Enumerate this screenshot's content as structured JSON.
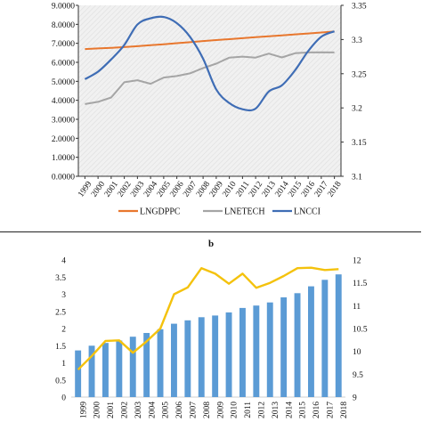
{
  "chart_data": [
    {
      "type": "line",
      "title": "",
      "x": [
        "1999",
        "2000",
        "2001",
        "2002",
        "2003",
        "2004",
        "2005",
        "2006",
        "2007",
        "2008",
        "2009",
        "2010",
        "2011",
        "2012",
        "2013",
        "2014",
        "2015",
        "2016",
        "2017",
        "2018"
      ],
      "ylim_left": [
        0,
        9
      ],
      "ylim_right": [
        3.1,
        3.35
      ],
      "left_ticks": [
        "0.0000",
        "1.0000",
        "2.0000",
        "3.0000",
        "4.0000",
        "5.0000",
        "6.0000",
        "7.0000",
        "8.0000",
        "9.0000"
      ],
      "right_ticks": [
        "3.1",
        "3.15",
        "3.2",
        "3.25",
        "3.3",
        "3.35"
      ],
      "series": [
        {
          "name": "LNGDPPC",
          "axis": "left",
          "color": "#e8772e",
          "values": [
            6.7,
            6.73,
            6.76,
            6.8,
            6.85,
            6.9,
            6.95,
            7.01,
            7.06,
            7.12,
            7.17,
            7.22,
            7.27,
            7.32,
            7.37,
            7.42,
            7.47,
            7.52,
            7.57,
            7.62
          ]
        },
        {
          "name": "LNETECH",
          "axis": "left",
          "color": "#a5a5a5",
          "values": [
            3.8,
            3.92,
            4.15,
            4.95,
            5.06,
            4.87,
            5.2,
            5.28,
            5.42,
            5.7,
            5.93,
            6.25,
            6.3,
            6.25,
            6.46,
            6.26,
            6.48,
            6.52,
            6.53,
            6.52
          ]
        },
        {
          "name": "LNCCI",
          "axis": "right",
          "color": "#3f6db5",
          "values": [
            3.242,
            3.253,
            3.271,
            3.292,
            3.322,
            3.331,
            3.333,
            3.324,
            3.304,
            3.272,
            3.227,
            3.207,
            3.198,
            3.199,
            3.224,
            3.233,
            3.255,
            3.283,
            3.304,
            3.312
          ]
        }
      ],
      "legend_position": "bottom"
    },
    {
      "type": "bar+line",
      "panel_label": "b",
      "x": [
        "1999",
        "2000",
        "2001",
        "2002",
        "2003",
        "2004",
        "2005",
        "2006",
        "2007",
        "2008",
        "2009",
        "2010",
        "2011",
        "2012",
        "2013",
        "2014",
        "2015",
        "2016",
        "2017",
        "2018"
      ],
      "ylim_left": [
        0,
        4
      ],
      "ylim_right": [
        9,
        12
      ],
      "left_ticks": [
        "0",
        "0.5",
        "1",
        "1.5",
        "2",
        "2.5",
        "3",
        "3.5",
        "4"
      ],
      "right_ticks": [
        "9",
        "9.5",
        "10",
        "10.5",
        "11",
        "11.5",
        "12"
      ],
      "bars": {
        "axis": "left",
        "color": "#5b9bd5",
        "values": [
          1.36,
          1.5,
          1.58,
          1.65,
          1.76,
          1.87,
          1.98,
          2.14,
          2.24,
          2.33,
          2.38,
          2.47,
          2.6,
          2.67,
          2.76,
          2.91,
          3.03,
          3.23,
          3.42,
          3.58
        ]
      },
      "line": {
        "axis": "right",
        "color": "#f4c20d",
        "values": [
          9.6,
          9.9,
          10.23,
          10.24,
          9.97,
          10.22,
          10.5,
          11.25,
          11.4,
          11.82,
          11.7,
          11.48,
          11.7,
          11.39,
          11.5,
          11.65,
          11.82,
          11.83,
          11.78,
          11.8
        ]
      }
    }
  ]
}
